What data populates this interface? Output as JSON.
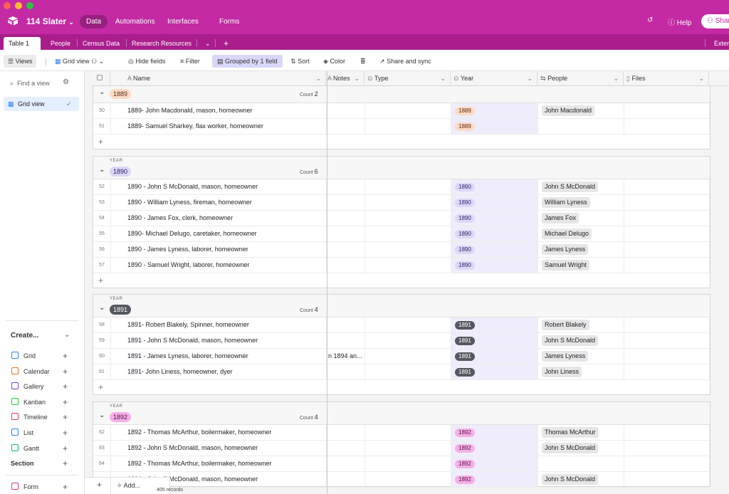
{
  "app": {
    "base_title": "114 Slater",
    "nav": [
      "Data",
      "Automations",
      "Interfaces",
      "Forms"
    ],
    "help": "Help",
    "share": "Share",
    "ext": "Exter"
  },
  "tabs": [
    "Table 1",
    "People",
    "Census Data",
    "Research Resources"
  ],
  "toolbar": {
    "views": "Views",
    "grid_view": "Grid view",
    "hide_fields": "Hide fields",
    "filter": "Filter",
    "grouped": "Grouped by 1 field",
    "sort": "Sort",
    "color": "Color",
    "share_sync": "Share and sync"
  },
  "sidebar": {
    "find_placeholder": "Find a view",
    "grid_view": "Grid view",
    "create": "Create...",
    "items": [
      {
        "label": "Grid",
        "color": "#2d7ff9"
      },
      {
        "label": "Calendar",
        "color": "#f26b1d"
      },
      {
        "label": "Gallery",
        "color": "#7c39ed"
      },
      {
        "label": "Kanban",
        "color": "#20c933"
      },
      {
        "label": "Timeline",
        "color": "#e8384f"
      },
      {
        "label": "List",
        "color": "#2d7ff9"
      },
      {
        "label": "Gantt",
        "color": "#11af86"
      },
      {
        "label": "Section",
        "color": ""
      },
      {
        "label": "Form",
        "color": "#e4318c"
      }
    ]
  },
  "columns": [
    "Name",
    "Notes",
    "Type",
    "Year",
    "People",
    "Files"
  ],
  "groups": [
    {
      "label": "YEAR",
      "year": "1889",
      "count": "2",
      "pill_bg": "#fddbc6",
      "pill_fg": "#5c2b0d",
      "rows": [
        {
          "num": "50",
          "name": "1889- John Macdonald, mason, homeowner",
          "notes": "",
          "people": "John Macdonald"
        },
        {
          "num": "51",
          "name": "1889- Samuel Sharkey, flax worker, homeowner",
          "notes": "",
          "people": ""
        }
      ]
    },
    {
      "label": "YEAR",
      "year": "1890",
      "count": "6",
      "pill_bg": "#dcd7f7",
      "pill_fg": "#2b2366",
      "rows": [
        {
          "num": "52",
          "name": "1890 - John S McDonald, mason, homeowner",
          "notes": "",
          "people": "John S McDonald"
        },
        {
          "num": "53",
          "name": "1890 - William Lyness, fireman, homeowner",
          "notes": "",
          "people": "William Lyness"
        },
        {
          "num": "54",
          "name": "1890 - James Fox, clerk, homeowner",
          "notes": "",
          "people": "James Fox"
        },
        {
          "num": "55",
          "name": "1890- Michael Delugo, caretaker, homeowner",
          "notes": "",
          "people": "Michael Delugo"
        },
        {
          "num": "56",
          "name": "1890 - James Lyness, laborer, homeowner",
          "notes": "",
          "people": "James Lyness"
        },
        {
          "num": "57",
          "name": "1890 - Samuel Wright, laborer, homeowner",
          "notes": "",
          "people": "Samuel Wright"
        }
      ]
    },
    {
      "label": "YEAR",
      "year": "1891",
      "count": "4",
      "pill_bg": "#555860",
      "pill_fg": "#ffffff",
      "rows": [
        {
          "num": "58",
          "name": "1891- Robert Blakely, Spinner, homeowner",
          "notes": "",
          "people": "Robert Blakely"
        },
        {
          "num": "59",
          "name": "1891 - John S McDonald, mason, homeowner",
          "notes": "",
          "people": "John S McDonald"
        },
        {
          "num": "60",
          "name": "1891 - James Lyness, laborer, homeowner",
          "notes": "n 1894 an...",
          "people": "James Lyness"
        },
        {
          "num": "61",
          "name": "1891- John Liness, homeowner, dyer",
          "notes": "",
          "people": "John Liness"
        }
      ]
    },
    {
      "label": "YEAR",
      "year": "1892",
      "count": "4",
      "pill_bg": "#f5b0e6",
      "pill_fg": "#5a0d4a",
      "rows": [
        {
          "num": "62",
          "name": "1892 - Thomas McArthur, boilermaker, homeowner",
          "notes": "",
          "people": "Thomas McArthur"
        },
        {
          "num": "63",
          "name": "1892 - John S McDonald, mason, homeowner",
          "notes": "",
          "people": "John S McDonald"
        },
        {
          "num": "64",
          "name": "1892 - Thomas McArthur, boilermaker, homeowner",
          "notes": "",
          "people": ""
        },
        {
          "num": "65",
          "name": "1894 - John S McDonald, mason, homeowner",
          "notes": "",
          "people": "John S McDonald"
        }
      ]
    }
  ],
  "footer": {
    "add": "Add...",
    "records": "405 records"
  }
}
